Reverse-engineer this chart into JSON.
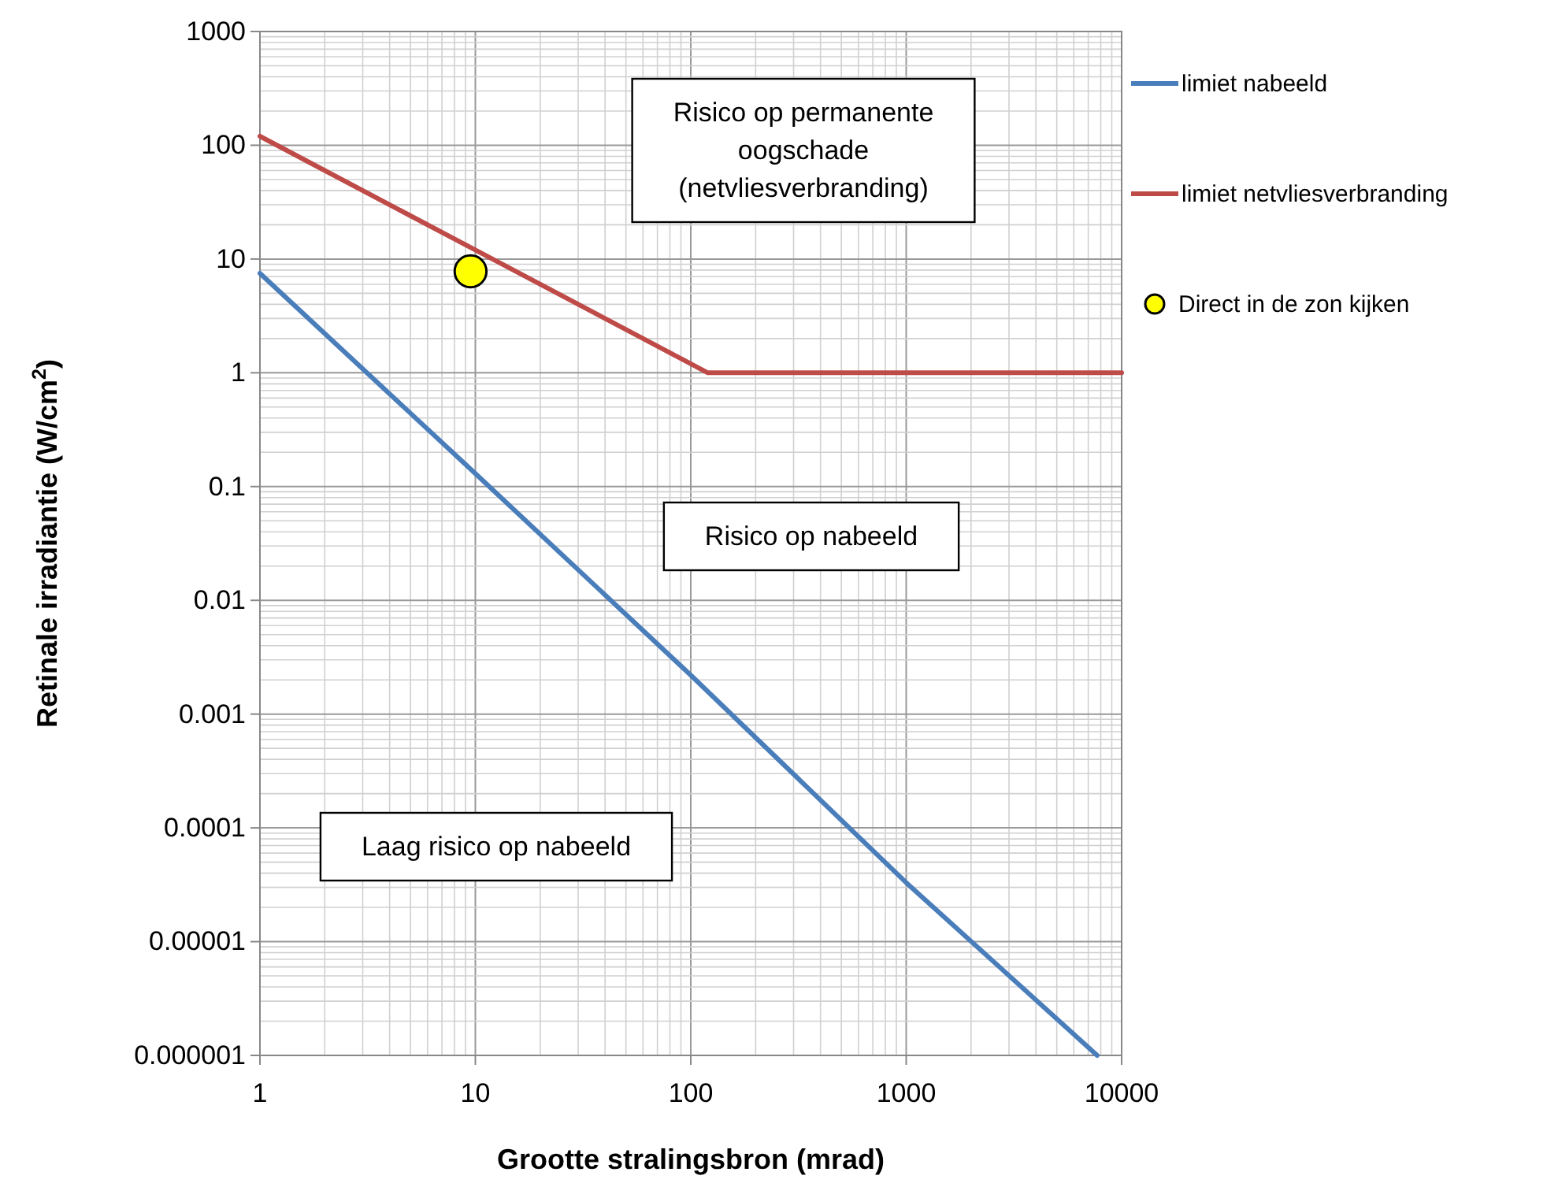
{
  "chart_data": {
    "type": "line",
    "xlabel": "Grootte stralingsbron (mrad)",
    "ylabel": "Retinale irradiantie (W/cm$^{2}$)",
    "log": "xy",
    "grid": true,
    "legend": "right",
    "xlim": [
      1,
      10000
    ],
    "xticks": [
      1,
      10,
      100,
      1000,
      10000
    ],
    "ylim": [
      1e-06,
      1000
    ],
    "yticks": [
      {
        "value": 1e-06,
        "label": "0.000001"
      },
      {
        "value": 1e-05,
        "label": "0.00001"
      },
      {
        "value": 0.0001,
        "label": "0.0001"
      },
      {
        "value": 0.001,
        "label": "0.001"
      },
      {
        "value": 0.01,
        "label": "0.01"
      },
      {
        "value": 0.1,
        "label": "0.1"
      },
      {
        "value": 1,
        "label": "1"
      },
      {
        "value": 10,
        "label": "10"
      },
      {
        "value": 100,
        "label": "100"
      },
      {
        "value": 1000,
        "label": "1000"
      }
    ],
    "series": [
      {
        "name": "limiet nabeeld",
        "color": "#4a7ebb",
        "x": [
          1,
          10,
          100,
          1000,
          7700
        ],
        "values": [
          7.5,
          0.13,
          0.0022,
          3.3e-05,
          1e-06
        ]
      },
      {
        "name": "limiet netvliesverbranding",
        "color": "#be4b48",
        "x": [
          1,
          10,
          100,
          120,
          10000
        ],
        "values": [
          120,
          12,
          1.2,
          1,
          1
        ]
      },
      {
        "name": "Direct in de zon kijken",
        "type": "scatter",
        "marker": "circle",
        "color": "#ffff00",
        "x": [
          9.5
        ],
        "values": [
          7.8
        ]
      }
    ],
    "annotations": [
      "Risico op permanente oogschade (netvliesverbranding)",
      "Risico op nabeeld",
      "Laag risico op nabeeld"
    ]
  }
}
